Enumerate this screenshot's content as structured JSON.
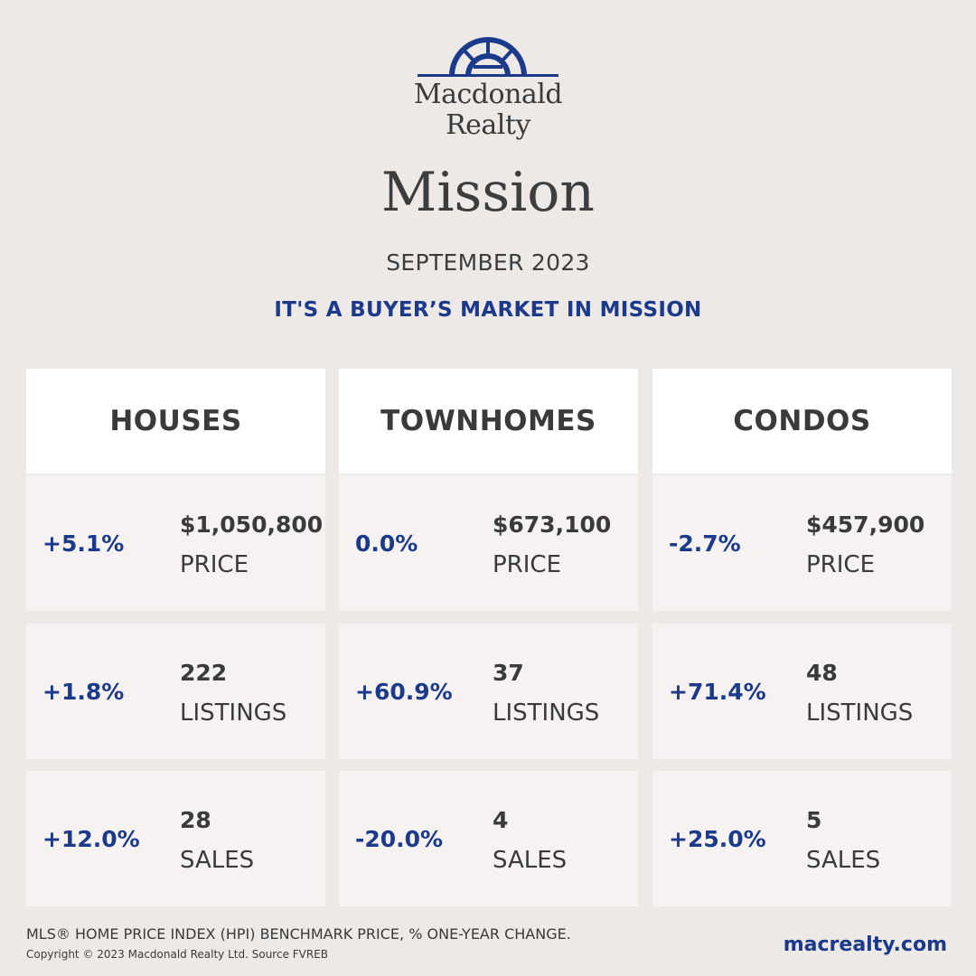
{
  "brand": {
    "line1": "Macdonald",
    "line2": "Realty",
    "logo_icon": "arch-window-logo-icon",
    "logo_color": "#1b3a8c"
  },
  "city": "Mission",
  "month": "SEPTEMBER 2023",
  "tagline": "IT'S A BUYER’S MARKET IN MISSION",
  "colors": {
    "accent": "#1b3a8c",
    "background": "#ede9e6",
    "card": "#f6f2f1",
    "header": "#ffffff"
  },
  "columns": [
    {
      "title": "HOUSES",
      "rows": [
        {
          "change": "+5.1%",
          "value": "$1,050,800",
          "label": "PRICE"
        },
        {
          "change": "+1.8%",
          "value": "222",
          "label": "LISTINGS"
        },
        {
          "change": "+12.0%",
          "value": "28",
          "label": "SALES"
        }
      ]
    },
    {
      "title": "TOWNHOMES",
      "rows": [
        {
          "change": "0.0%",
          "value": "$673,100",
          "label": "PRICE"
        },
        {
          "change": "+60.9%",
          "value": "37",
          "label": "LISTINGS"
        },
        {
          "change": "-20.0%",
          "value": "4",
          "label": "SALES"
        }
      ]
    },
    {
      "title": "CONDOS",
      "rows": [
        {
          "change": "-2.7%",
          "value": "$457,900",
          "label": "PRICE"
        },
        {
          "change": "+71.4%",
          "value": "48",
          "label": "LISTINGS"
        },
        {
          "change": "+25.0%",
          "value": "5",
          "label": "SALES"
        }
      ]
    }
  ],
  "footer": {
    "note": "MLS® HOME PRICE INDEX (HPI) BENCHMARK PRICE, % ONE-YEAR CHANGE.",
    "copyright": "Copyright © 2023 Macdonald Realty Ltd. Source FVREB",
    "website": "macrealty.com"
  }
}
